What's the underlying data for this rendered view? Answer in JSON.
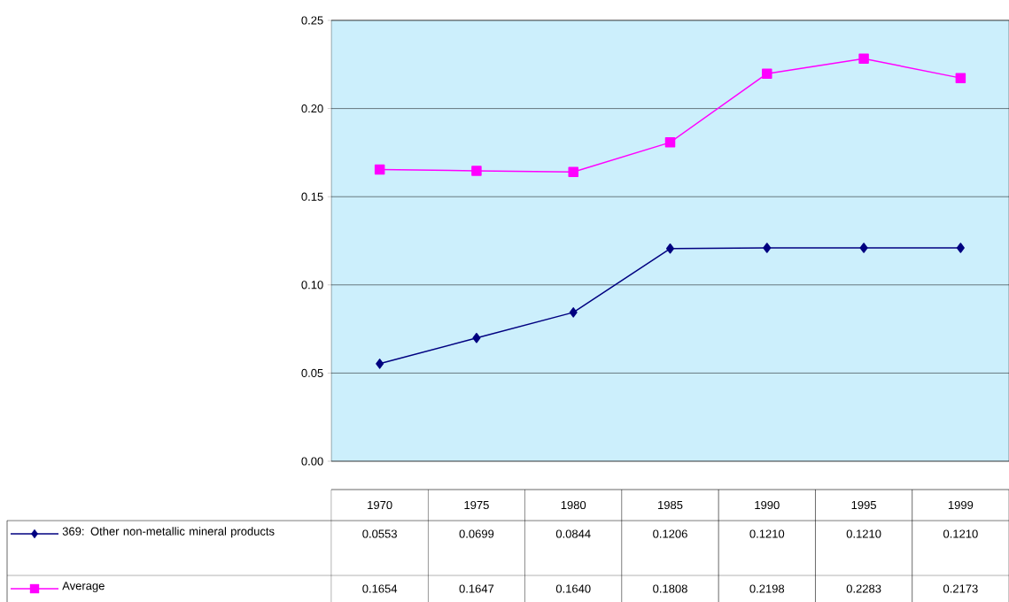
{
  "chart_data": {
    "type": "line",
    "categories": [
      "1970",
      "1975",
      "1980",
      "1985",
      "1990",
      "1995",
      "1999"
    ],
    "series": [
      {
        "name": "369: Other non-metallic mineral products",
        "color": "#000080",
        "marker": "diamond",
        "values": [
          0.0553,
          0.0699,
          0.0844,
          0.1206,
          0.121,
          0.121,
          0.121
        ],
        "value_labels": [
          "0.0553",
          "0.0699",
          "0.0844",
          "0.1206",
          "0.1210",
          "0.1210",
          "0.1210"
        ]
      },
      {
        "name": "Average",
        "color": "#ff00ff",
        "marker": "square",
        "values": [
          0.1654,
          0.1647,
          0.164,
          0.1808,
          0.2198,
          0.2283,
          0.2173
        ],
        "value_labels": [
          "0.1654",
          "0.1647",
          "0.1640",
          "0.1808",
          "0.2198",
          "0.2283",
          "0.2173"
        ]
      }
    ],
    "ylim": [
      0,
      0.25
    ],
    "yticks": [
      {
        "value": 0,
        "label": "0.00"
      },
      {
        "value": 0.05,
        "label": "0.05"
      },
      {
        "value": 0.1,
        "label": "0.10"
      },
      {
        "value": 0.15,
        "label": "0.15"
      },
      {
        "value": 0.2,
        "label": "0.20"
      },
      {
        "value": 0.25,
        "label": "0.25"
      }
    ],
    "grid": "y",
    "legend": "bottom",
    "line_style": "solid"
  }
}
